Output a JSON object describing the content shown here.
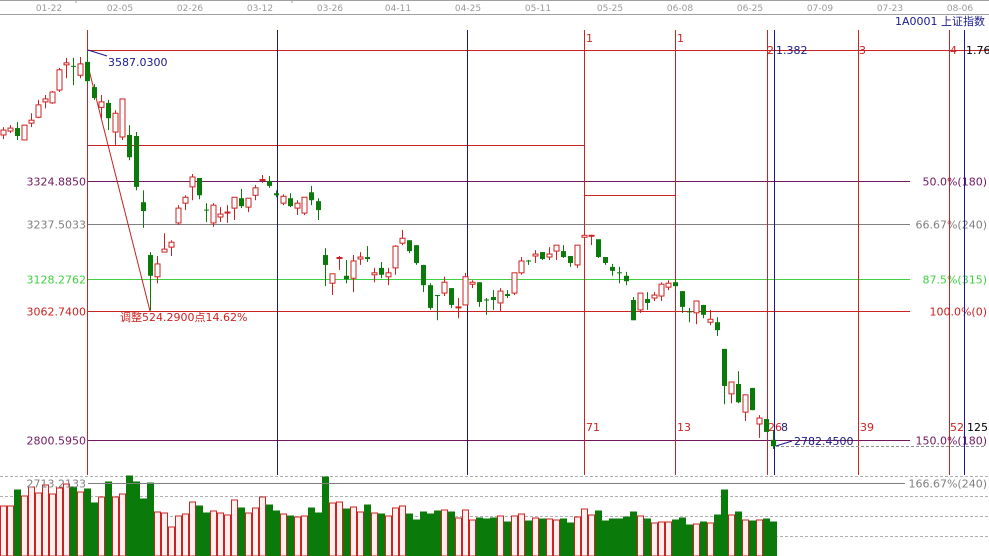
{
  "header": {
    "symbol": "1A0001",
    "name": "上证指数",
    "dates": [
      "01-22",
      "02-05",
      "02-26",
      "03-12",
      "03-26",
      "04-11",
      "04-25",
      "05-11",
      "05-25",
      "06-08",
      "06-25",
      "07-09",
      "07-23",
      "08-06"
    ]
  },
  "colors": {
    "up": "#cc2222",
    "down": "#0a7a0a",
    "fib_red": "#cc2222",
    "fib_blue": "#1a1a8c",
    "purple": "#701860",
    "gray": "#808080",
    "green": "#40d040"
  },
  "levels": [
    {
      "price_label": "3324.8850",
      "pct_label": "50.0%(180)",
      "color": "#701860"
    },
    {
      "price_label": "3237.5033",
      "pct_label": "66.67%(240)",
      "color": "#808080"
    },
    {
      "price_label": "3128.2762",
      "pct_label": "87.5%(315)",
      "color": "#40d040"
    },
    {
      "price_label": "3062.7400",
      "pct_label": "100.0%(0)",
      "color": "#cc2222"
    },
    {
      "price_label": "2800.5950",
      "pct_label": "150.0%(180)",
      "color": "#701860"
    },
    {
      "price_label": "2713.2133",
      "pct_label": "166.67%(240)",
      "color": "#808080"
    }
  ],
  "annotations": {
    "high_label": "3587.0300",
    "low_label": "2782.4500",
    "adjust_label": "调整524.2900点14.62%"
  },
  "time_cycles": {
    "top_labels": [
      "1",
      "1",
      "2",
      "3",
      "4"
    ],
    "bottom_labels": [
      "71",
      "13",
      "26",
      "39",
      "52"
    ],
    "blue_top_labels": [
      "1.382",
      "1.76"
    ],
    "blue_bottom_labels": [
      "8",
      "125"
    ]
  },
  "chart_data": {
    "type": "candlestick",
    "fields": [
      "open",
      "high",
      "low",
      "close"
    ],
    "candles": [
      [
        3418,
        3434,
        3410,
        3428
      ],
      [
        3426,
        3438,
        3422,
        3432
      ],
      [
        3432,
        3444,
        3408,
        3416
      ],
      [
        3408,
        3438,
        3408,
        3438
      ],
      [
        3442,
        3462,
        3434,
        3448
      ],
      [
        3454,
        3489,
        3452,
        3479
      ],
      [
        3485,
        3499,
        3472,
        3491
      ],
      [
        3483,
        3507,
        3481,
        3505
      ],
      [
        3509,
        3554,
        3505,
        3550
      ],
      [
        3560,
        3574,
        3533,
        3564
      ],
      [
        3558,
        3574,
        3519,
        3556
      ],
      [
        3539,
        3576,
        3533,
        3562
      ],
      [
        3566,
        3587.03,
        3521,
        3527
      ],
      [
        3515,
        3521,
        3489,
        3493
      ],
      [
        3474,
        3499,
        3452,
        3485
      ],
      [
        3483,
        3489,
        3428,
        3452
      ],
      [
        3424,
        3468,
        3398,
        3462
      ],
      [
        3414,
        3491,
        3408,
        3491
      ],
      [
        3418,
        3438,
        3367,
        3373
      ],
      [
        3416,
        3424,
        3306,
        3313
      ],
      [
        3282,
        3306,
        3230,
        3264
      ],
      [
        3175,
        3181,
        3062.74,
        3133
      ],
      [
        3131,
        3173,
        3118,
        3157
      ],
      [
        3181,
        3219,
        3181,
        3187
      ],
      [
        3191,
        3205,
        3173,
        3201
      ],
      [
        3240,
        3276,
        3236,
        3270
      ],
      [
        3280,
        3296,
        3266,
        3292
      ],
      [
        3313,
        3339,
        3286,
        3333
      ],
      [
        3331,
        3331,
        3288,
        3296
      ],
      [
        3267,
        3280,
        3242,
        3265
      ],
      [
        3240,
        3280,
        3232,
        3276
      ],
      [
        3252,
        3272,
        3242,
        3258
      ],
      [
        3260,
        3276,
        3240,
        3262
      ],
      [
        3270,
        3292,
        3246,
        3292
      ],
      [
        3290,
        3309,
        3270,
        3274
      ],
      [
        3272,
        3290,
        3262,
        3290
      ],
      [
        3296,
        3317,
        3286,
        3311
      ],
      [
        3326,
        3337,
        3321,
        3328
      ],
      [
        3325,
        3335,
        3311,
        3315
      ],
      [
        3300,
        3306,
        3292,
        3296
      ],
      [
        3280,
        3298,
        3276,
        3294
      ],
      [
        3290,
        3300,
        3272,
        3274
      ],
      [
        3270,
        3286,
        3256,
        3280
      ],
      [
        3260,
        3292,
        3256,
        3292
      ],
      [
        3302,
        3315,
        3276,
        3286
      ],
      [
        3284,
        3290,
        3246,
        3266
      ],
      [
        3175,
        3189,
        3112,
        3155
      ],
      [
        3118,
        3137,
        3094,
        3137
      ],
      [
        3168,
        3173,
        3145,
        3170
      ],
      [
        3133,
        3165,
        3118,
        3126
      ],
      [
        3128,
        3175,
        3100,
        3163
      ],
      [
        3167,
        3181,
        3155,
        3171
      ],
      [
        3171,
        3193,
        3161,
        3167
      ],
      [
        3135,
        3149,
        3120,
        3139
      ],
      [
        3149,
        3161,
        3128,
        3135
      ],
      [
        3131,
        3149,
        3114,
        3139
      ],
      [
        3149,
        3195,
        3135,
        3193
      ],
      [
        3199,
        3226,
        3195,
        3209
      ],
      [
        3205,
        3205,
        3179,
        3183
      ],
      [
        3195,
        3195,
        3155,
        3159
      ],
      [
        3155,
        3155,
        3100,
        3114
      ],
      [
        3114,
        3118,
        3064,
        3068
      ],
      [
        3094,
        3094,
        3043,
        3093
      ],
      [
        3098,
        3131,
        3092,
        3120
      ],
      [
        3108,
        3108,
        3068,
        3074
      ],
      [
        3068,
        3088,
        3047,
        3070
      ],
      [
        3074,
        3139,
        3074,
        3131
      ],
      [
        3116,
        3124,
        3108,
        3120
      ],
      [
        3120,
        3120,
        3070,
        3080
      ],
      [
        3085,
        3088,
        3054,
        3084
      ],
      [
        3090,
        3104,
        3064,
        3084
      ],
      [
        3078,
        3108,
        3060,
        3102
      ],
      [
        3096,
        3104,
        3088,
        3092
      ],
      [
        3098,
        3139,
        3094,
        3139
      ],
      [
        3139,
        3171,
        3135,
        3163
      ],
      [
        3164,
        3165,
        3155,
        3162
      ],
      [
        3173,
        3185,
        3159,
        3177
      ],
      [
        3181,
        3181,
        3165,
        3167
      ],
      [
        3171,
        3191,
        3165,
        3177
      ],
      [
        3183,
        3195,
        3165,
        3195
      ],
      [
        3183,
        3195,
        3169,
        3171
      ],
      [
        3173,
        3173,
        3151,
        3159
      ],
      [
        3155,
        3195,
        3149,
        3195
      ],
      [
        3211,
        3221,
        3205,
        3215
      ],
      [
        3214,
        3216,
        3195,
        3215
      ],
      [
        3207,
        3207,
        3169,
        3171
      ],
      [
        3171,
        3171,
        3155,
        3159
      ],
      [
        3151,
        3157,
        3133,
        3143
      ],
      [
        3140,
        3151,
        3118,
        3139
      ],
      [
        3133,
        3141,
        3114,
        3122
      ],
      [
        3084,
        3090,
        3043,
        3043
      ],
      [
        3064,
        3098,
        3058,
        3098
      ],
      [
        3086,
        3100,
        3064,
        3078
      ],
      [
        3088,
        3100,
        3082,
        3094
      ],
      [
        3092,
        3120,
        3082,
        3116
      ],
      [
        3110,
        3124,
        3104,
        3118
      ],
      [
        3120,
        3124,
        3110,
        3112
      ],
      [
        3102,
        3102,
        3058,
        3070
      ],
      [
        3061,
        3068,
        3039,
        3060
      ],
      [
        3058,
        3082,
        3035,
        3082
      ],
      [
        3074,
        3074,
        3047,
        3054
      ],
      [
        3039,
        3064,
        3033,
        3045
      ],
      [
        3039,
        3049,
        3011,
        3023
      ],
      [
        2985,
        2985,
        2873,
        2910
      ],
      [
        2894,
        2918,
        2875,
        2918
      ],
      [
        2914,
        2940,
        2875,
        2877
      ],
      [
        2857,
        2892,
        2839,
        2892
      ],
      [
        2906,
        2906,
        2861,
        2861
      ],
      [
        2833,
        2851,
        2805,
        2845
      ],
      [
        2843,
        2843,
        2817,
        2817
      ],
      [
        2801,
        2821,
        2782.45,
        2788
      ]
    ],
    "volume_relative": [
      50,
      50,
      66,
      60,
      69,
      63,
      71,
      62,
      68,
      72,
      69,
      64,
      67,
      53,
      59,
      74,
      59,
      62,
      80,
      74,
      57,
      73,
      44,
      43,
      29,
      40,
      42,
      54,
      50,
      43,
      45,
      43,
      41,
      56,
      48,
      43,
      48,
      59,
      51,
      45,
      42,
      40,
      39,
      40,
      48,
      43,
      79,
      53,
      54,
      47,
      49,
      44,
      51,
      43,
      42,
      40,
      48,
      50,
      42,
      36,
      44,
      42,
      45,
      46,
      44,
      38,
      46,
      36,
      38,
      37,
      38,
      40,
      34,
      40,
      42,
      35,
      38,
      37,
      37,
      36,
      37,
      33,
      39,
      47,
      41,
      45,
      35,
      37,
      37,
      39,
      44,
      40,
      37,
      33,
      34,
      34,
      36,
      38,
      31,
      32,
      34,
      33,
      41,
      66,
      41,
      44,
      36,
      35,
      36,
      37,
      34
    ],
    "price_levels": [
      3587.03,
      3324.885,
      3237.5033,
      3128.2762,
      3062.74,
      2800.595,
      2713.2133,
      2782.45
    ],
    "high": 3587.03,
    "low_retracement": 3062.74,
    "latest_low": 2782.45
  }
}
